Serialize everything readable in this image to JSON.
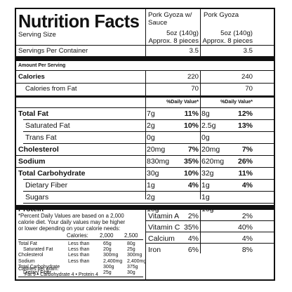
{
  "title": "Nutrition Facts",
  "products": [
    {
      "name": "Pork Gyoza w/ Sauce",
      "serving_size": "5oz (140g) Approx. 8 pieces",
      "servings_per_container": "3.5"
    },
    {
      "name": "Pork Gyoza",
      "serving_size": "5oz (140g) Approx. 8 pieces",
      "servings_per_container": "3.5"
    }
  ],
  "labels": {
    "serving_size": "Serving Size",
    "servings_per_container": "Servings Per Container",
    "amount_per_serving": "Amount Per Serving",
    "calories": "Calories",
    "calories_from_fat": "Calories from Fat",
    "daily_value": "%Daily Value*"
  },
  "calories": [
    "220",
    "240"
  ],
  "calories_from_fat": [
    "70",
    "70"
  ],
  "nutrients": [
    {
      "name": "Total Fat",
      "bold": true,
      "indent": false,
      "amt": [
        "7g",
        "8g"
      ],
      "dv": [
        "11%",
        "12%"
      ]
    },
    {
      "name": "Saturated Fat",
      "bold": false,
      "indent": true,
      "amt": [
        "2g",
        "2.5g"
      ],
      "dv": [
        "10%",
        "13%"
      ]
    },
    {
      "name": "Trans Fat",
      "bold": false,
      "indent": true,
      "amt": [
        "0g",
        "0g"
      ],
      "dv": [
        "",
        ""
      ]
    },
    {
      "name": "Cholesterol",
      "bold": true,
      "indent": false,
      "amt": [
        "20mg",
        "20mg"
      ],
      "dv": [
        "7%",
        "7%"
      ]
    },
    {
      "name": "Sodium",
      "bold": true,
      "indent": false,
      "amt": [
        "830mg",
        "620mg"
      ],
      "dv": [
        "35%",
        "26%"
      ]
    },
    {
      "name": "Total Carbohydrate",
      "bold": true,
      "indent": false,
      "amt": [
        "30g",
        "32g"
      ],
      "dv": [
        "10%",
        "11%"
      ]
    },
    {
      "name": "Dietary Fiber",
      "bold": false,
      "indent": true,
      "amt": [
        "1g",
        "1g"
      ],
      "dv": [
        "4%",
        "4%"
      ]
    },
    {
      "name": "Sugars",
      "bold": false,
      "indent": true,
      "amt": [
        "2g",
        "1g"
      ],
      "dv": [
        "",
        ""
      ]
    },
    {
      "name": "Protein",
      "bold": true,
      "indent": false,
      "amt": [
        "10g",
        "10g"
      ],
      "dv": [
        "",
        ""
      ]
    }
  ],
  "vitamins": [
    {
      "name": "Vitamin A",
      "dv": [
        "2%",
        "2%"
      ]
    },
    {
      "name": "Vitamin C",
      "dv": [
        "35%",
        "40%"
      ]
    },
    {
      "name": "Calcium",
      "dv": [
        "4%",
        "4%"
      ]
    },
    {
      "name": "Iron",
      "dv": [
        "6%",
        "8%"
      ]
    }
  ],
  "footnote": {
    "text_lines": [
      "*Percent Daily Values are based on a 2,000",
      "calorie diet. Your daily values may be higher",
      "or lower depending on your calorie needs:"
    ],
    "calories_header": [
      "Calories:",
      "2,000",
      "2,500"
    ],
    "rows": [
      [
        "Total Fat",
        "Less than",
        "65g",
        "80g"
      ],
      [
        "Saturated Fat",
        "Less than",
        "20g",
        "25g"
      ],
      [
        "Cholesterol",
        "Less than",
        "300mg",
        "300mg"
      ],
      [
        "Sodium",
        "Less than",
        "2,400mg",
        "2,400mg"
      ],
      [
        "Total Carbohydrate",
        "",
        "300g",
        "375g"
      ],
      [
        "Dietary Fiber",
        "",
        "25g",
        "30g"
      ]
    ],
    "per_gram_label": "Calories per gram:",
    "per_gram": "Fat 9  •  Carbohydrate 4  •  Protein 4"
  }
}
